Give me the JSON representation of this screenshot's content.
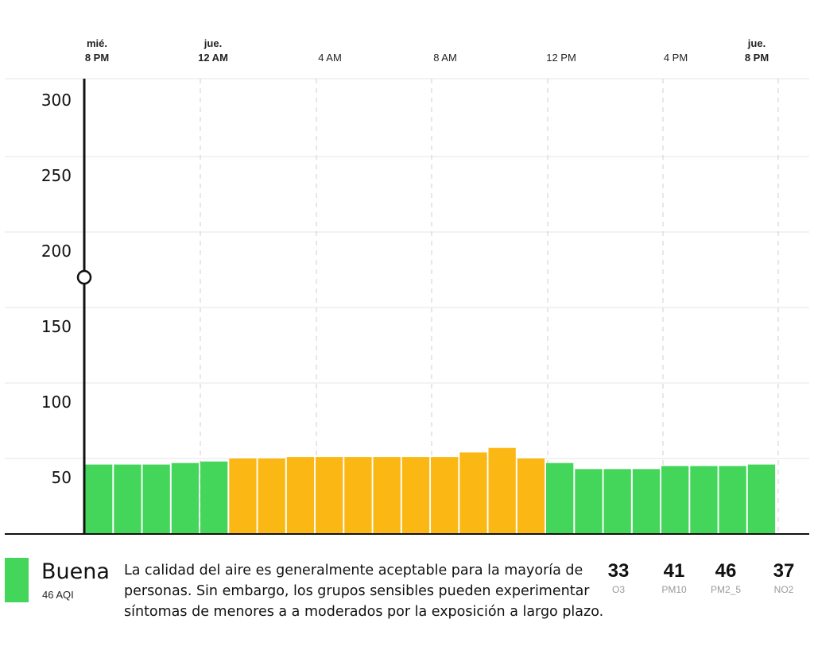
{
  "chart_data": {
    "type": "bar",
    "time_axis": [
      {
        "day": "mié.",
        "time": "8 PM",
        "bold": true
      },
      {
        "day": "jue.",
        "time": "12 AM",
        "bold": true
      },
      {
        "day": "",
        "time": "4 AM",
        "bold": false
      },
      {
        "day": "",
        "time": "8 AM",
        "bold": false
      },
      {
        "day": "",
        "time": "12 PM",
        "bold": false
      },
      {
        "day": "",
        "time": "4 PM",
        "bold": false
      },
      {
        "day": "jue.",
        "time": "8 PM",
        "bold": true
      }
    ],
    "y_ticks": [
      "300",
      "250",
      "200",
      "150",
      "100",
      "50"
    ],
    "ylim": [
      0,
      300
    ],
    "grid": true,
    "values": [
      46,
      46,
      46,
      47,
      48,
      50,
      50,
      51,
      51,
      51,
      51,
      51,
      51,
      54,
      57,
      50,
      47,
      43,
      43,
      43,
      45,
      45,
      45,
      46
    ],
    "colors": {
      "good": "#44d65a",
      "moderate": "#fbb713"
    },
    "moderate_threshold": 50,
    "cursor_value": 170
  },
  "status": {
    "label": "Buena",
    "aqi_text": "46 AQI",
    "color": "#44d65a",
    "description": "La calidad del aire es generalmente aceptable para la mayoría de personas. Sin embargo, los grupos sensibles pueden experimentar síntomas de menores a a moderados por la exposición a largo plazo."
  },
  "pollutants": [
    {
      "value": "33",
      "name": "O3"
    },
    {
      "value": "41",
      "name": "PM10"
    },
    {
      "value": "46",
      "name": "PM2_5"
    },
    {
      "value": "37",
      "name": "NO2"
    }
  ]
}
